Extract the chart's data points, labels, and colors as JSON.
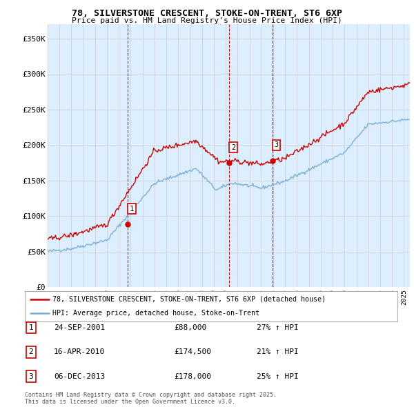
{
  "title": "78, SILVERSTONE CRESCENT, STOKE-ON-TRENT, ST6 6XP",
  "subtitle": "Price paid vs. HM Land Registry's House Price Index (HPI)",
  "legend_line1": "78, SILVERSTONE CRESCENT, STOKE-ON-TRENT, ST6 6XP (detached house)",
  "legend_line2": "HPI: Average price, detached house, Stoke-on-Trent",
  "sale_color": "#cc0000",
  "hpi_color": "#7ab0d4",
  "vline_color": "#cc0000",
  "sales": [
    {
      "date": "24-SEP-2001",
      "date_num": 2001.73,
      "price": 88000,
      "label": "1",
      "pct": "27% ↑ HPI"
    },
    {
      "date": "16-APR-2010",
      "date_num": 2010.29,
      "price": 174500,
      "label": "2",
      "pct": "21% ↑ HPI"
    },
    {
      "date": "06-DEC-2013",
      "date_num": 2013.92,
      "price": 178000,
      "label": "3",
      "pct": "25% ↑ HPI"
    }
  ],
  "ylim": [
    0,
    370000
  ],
  "yticks": [
    0,
    50000,
    100000,
    150000,
    200000,
    250000,
    300000,
    350000
  ],
  "ytick_labels": [
    "£0",
    "£50K",
    "£100K",
    "£150K",
    "£200K",
    "£250K",
    "£300K",
    "£350K"
  ],
  "footer": "Contains HM Land Registry data © Crown copyright and database right 2025.\nThis data is licensed under the Open Government Licence v3.0.",
  "background_color": "#ffffff",
  "grid_color": "#cccccc",
  "chart_bg": "#ddeeff"
}
